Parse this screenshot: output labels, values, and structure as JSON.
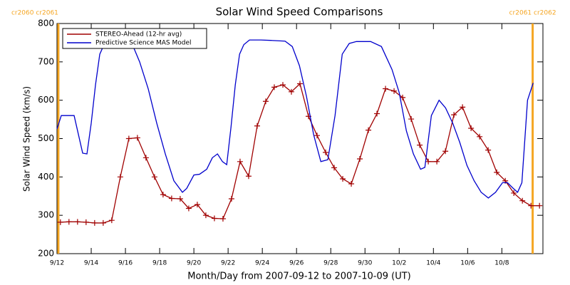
{
  "chart_data": {
    "type": "line",
    "title": "Solar Wind Speed Comparisons",
    "xlabel": "Month/Day from 2007-09-12 to 2007-10-09 (UT)",
    "ylabel": "Solar Wind Speed (km/s)",
    "xlim": [
      0,
      28.4
    ],
    "ylim": [
      200,
      800
    ],
    "yticks": [
      200,
      300,
      400,
      500,
      600,
      700,
      800
    ],
    "xticks": [
      {
        "value": 0,
        "label": "9/12"
      },
      {
        "value": 2,
        "label": "9/14"
      },
      {
        "value": 4,
        "label": "9/16"
      },
      {
        "value": 6,
        "label": "9/18"
      },
      {
        "value": 8,
        "label": "9/20"
      },
      {
        "value": 10,
        "label": "9/22"
      },
      {
        "value": 12,
        "label": "9/24"
      },
      {
        "value": 14,
        "label": "9/26"
      },
      {
        "value": 16,
        "label": "9/28"
      },
      {
        "value": 18,
        "label": "9/30"
      },
      {
        "value": 20,
        "label": "10/2"
      },
      {
        "value": 22,
        "label": "10/4"
      },
      {
        "value": 24,
        "label": "10/6"
      },
      {
        "value": 26,
        "label": "10/8"
      }
    ],
    "legend": "upper left",
    "annotations": [
      {
        "text": "cr2060 cr2061",
        "x": 0.08,
        "color": "#f5a623"
      },
      {
        "text": "cr2061 cr2062",
        "x": 27.8,
        "color": "#f5a623"
      }
    ],
    "series": [
      {
        "name": "STEREO-Ahead (12-hr avg)",
        "color": "#a00000",
        "markers": true,
        "x": [
          0.2,
          0.7,
          1.2,
          1.7,
          2.2,
          2.7,
          3.2,
          3.7,
          4.2,
          4.7,
          5.2,
          5.7,
          6.2,
          6.7,
          7.2,
          7.7,
          8.2,
          8.7,
          9.2,
          9.7,
          10.2,
          10.7,
          11.2,
          11.7,
          12.2,
          12.7,
          13.2,
          13.7,
          14.2,
          14.7,
          15.2,
          15.7,
          16.2,
          16.7,
          17.2,
          17.7,
          18.2,
          18.7,
          19.2,
          19.7,
          20.2,
          20.7,
          21.2,
          21.7,
          22.2,
          22.7,
          23.2,
          23.7,
          24.2,
          24.7,
          25.2,
          25.7,
          26.2,
          26.7,
          27.2,
          27.7,
          28.2
        ],
        "values": [
          282,
          283,
          283,
          282,
          280,
          280,
          287,
          400,
          500,
          502,
          450,
          400,
          354,
          344,
          343,
          318,
          328,
          300,
          292,
          291,
          343,
          440,
          402,
          533,
          597,
          634,
          640,
          622,
          643,
          558,
          508,
          464,
          424,
          395,
          382,
          447,
          522,
          565,
          630,
          624,
          607,
          551,
          483,
          440,
          440,
          467,
          562,
          582,
          527,
          505,
          470,
          412,
          390,
          358,
          338,
          325,
          325
        ]
      },
      {
        "name": "Predictive Science MAS Model",
        "color": "#0000cc",
        "markers": false,
        "x": [
          0,
          0.25,
          1,
          1.5,
          1.75,
          2,
          2.25,
          2.5,
          2.75,
          3,
          4.38,
          4.83,
          5.33,
          5.83,
          6.33,
          6.83,
          7.33,
          7.58,
          8,
          8.33,
          8.75,
          9.08,
          9.38,
          9.67,
          9.92,
          10.17,
          10.42,
          10.67,
          10.92,
          11.25,
          11.92,
          12.5,
          13.33,
          13.75,
          14.17,
          14.58,
          15,
          15.42,
          15.83,
          16.25,
          16.67,
          17.08,
          17.5,
          18.33,
          18.96,
          19.58,
          20,
          20.42,
          20.83,
          21.25,
          21.5,
          21.88,
          22.33,
          22.71,
          23.13,
          23.54,
          23.96,
          24.38,
          24.79,
          25.21,
          25.63,
          26.04,
          26.33,
          26.67,
          26.92,
          27.17,
          27.5,
          27.83
        ],
        "values": [
          525,
          560,
          560,
          462,
          460,
          540,
          640,
          720,
          745,
          748,
          748,
          700,
          630,
          540,
          460,
          390,
          360,
          370,
          405,
          407,
          420,
          450,
          460,
          440,
          432,
          530,
          640,
          720,
          745,
          757,
          757,
          756,
          754,
          740,
          690,
          610,
          510,
          440,
          445,
          560,
          720,
          748,
          753,
          753,
          740,
          680,
          620,
          520,
          460,
          420,
          425,
          560,
          600,
          580,
          540,
          490,
          430,
          390,
          360,
          345,
          360,
          385,
          385,
          370,
          360,
          385,
          600,
          645
        ]
      }
    ]
  }
}
